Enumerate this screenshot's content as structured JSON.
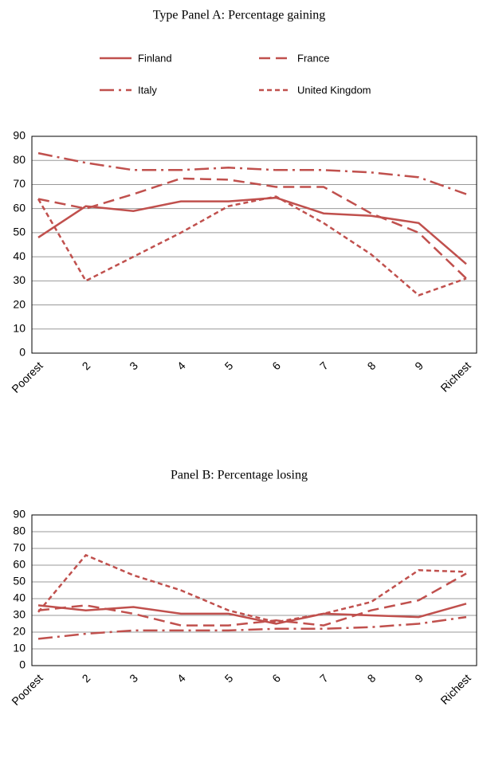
{
  "chart_data": [
    {
      "type": "line",
      "title": "Type Panel A: Percentage gaining",
      "categories": [
        "Poorest",
        "2",
        "3",
        "4",
        "5",
        "6",
        "7",
        "8",
        "9",
        "Richest"
      ],
      "series": [
        {
          "name": "Finland",
          "color": "#c0504d",
          "style": "solid",
          "values": [
            48,
            61,
            59,
            63,
            63,
            64.5,
            58,
            57,
            54,
            37
          ]
        },
        {
          "name": "France",
          "color": "#c0504d",
          "style": "dash",
          "values": [
            64,
            60,
            66,
            72.5,
            72,
            69,
            69,
            58,
            50,
            31
          ]
        },
        {
          "name": "Italy",
          "color": "#c0504d",
          "style": "dashdot",
          "values": [
            83,
            79,
            76,
            76,
            77,
            76,
            76,
            75,
            73,
            66
          ]
        },
        {
          "name": "United Kingdom",
          "color": "#c0504d",
          "style": "shortdash",
          "values": [
            64,
            30,
            40,
            50,
            61,
            65,
            54,
            41,
            24,
            31
          ]
        }
      ],
      "ylim": [
        0,
        90
      ],
      "yticks": [
        0,
        10,
        20,
        30,
        40,
        50,
        60,
        70,
        80,
        90
      ],
      "grid": true,
      "legend": "top"
    },
    {
      "type": "line",
      "title": "Panel B: Percentage losing",
      "categories": [
        "Poorest",
        "2",
        "3",
        "4",
        "5",
        "6",
        "7",
        "8",
        "9",
        "Richest"
      ],
      "series": [
        {
          "color": "#c0504d",
          "style": "solid",
          "values": [
            36,
            33,
            35,
            31,
            31,
            25,
            31,
            30,
            29,
            37
          ]
        },
        {
          "color": "#c0504d",
          "style": "dash",
          "values": [
            33,
            36,
            31,
            24,
            24,
            27,
            24,
            33,
            39,
            55
          ]
        },
        {
          "color": "#c0504d",
          "style": "dashdot",
          "values": [
            16,
            19,
            21,
            21,
            21,
            22,
            22,
            23,
            25,
            29
          ]
        },
        {
          "color": "#c0504d",
          "style": "shortdash",
          "values": [
            32,
            66,
            54,
            45,
            33,
            26,
            31,
            38,
            57,
            56
          ]
        }
      ],
      "ylim": [
        0,
        90
      ],
      "yticks": [
        0,
        10,
        20,
        30,
        40,
        50,
        60,
        70,
        80,
        90
      ],
      "grid": true
    }
  ]
}
